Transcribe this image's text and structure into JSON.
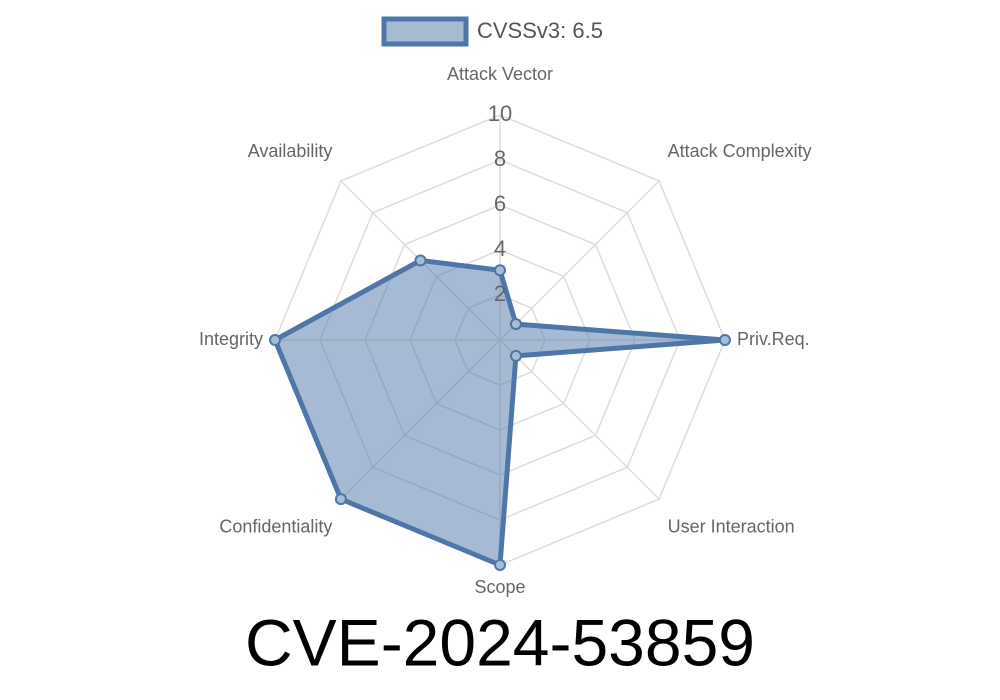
{
  "chart_data": {
    "type": "radar",
    "title": "CVE-2024-53859",
    "categories": [
      "Attack Vector",
      "Attack Complexity",
      "Priv.Req.",
      "User Interaction",
      "Scope",
      "Confidentiality",
      "Integrity",
      "Availability"
    ],
    "series": [
      {
        "name": "CVSSv3: 6.5",
        "color": "#4f76a8",
        "values": [
          3.1,
          1,
          10,
          1,
          10,
          10,
          10,
          5
        ]
      }
    ],
    "rlim": [
      0,
      10
    ],
    "rticks": [
      2,
      4,
      6,
      8,
      10
    ],
    "grid": true,
    "legend": "top"
  }
}
